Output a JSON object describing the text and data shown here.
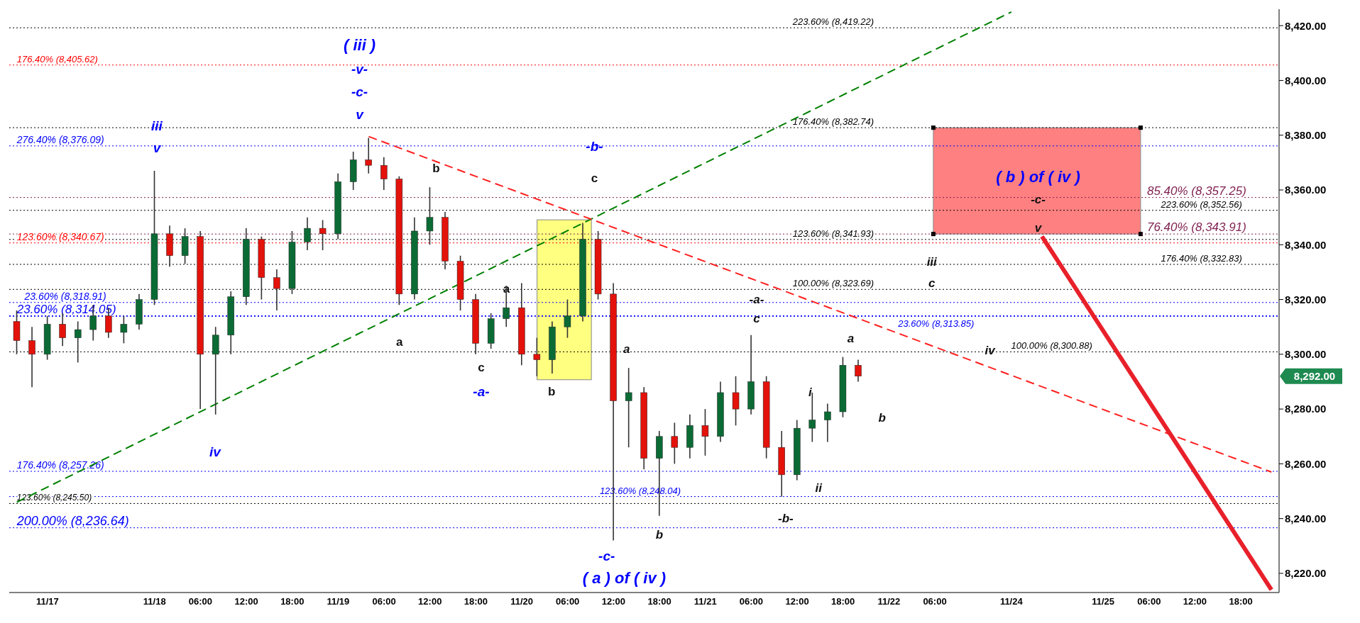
{
  "chart_data": {
    "type": "candlestick",
    "categories": [
      null,
      null,
      "11/17",
      null,
      null,
      null,
      null,
      null,
      null,
      "11/18",
      null,
      null,
      "06:00",
      null,
      null,
      "12:00",
      null,
      null,
      "18:00",
      null,
      null,
      "11/19",
      null,
      null,
      "06:00",
      null,
      null,
      "12:00",
      null,
      null,
      "18:00",
      null,
      null,
      "11/20",
      null,
      null,
      "06:00",
      null,
      null,
      "12:00",
      null,
      null,
      "18:00",
      null,
      null,
      "11/21",
      null,
      null,
      "06:00",
      null,
      null,
      "12:00",
      null,
      null,
      "18:00",
      null,
      null,
      "11/22",
      null,
      null,
      "06:00",
      null,
      null,
      null,
      null,
      "11/24",
      null,
      null,
      null,
      null,
      null,
      "11/25",
      null,
      null,
      "06:00",
      null,
      null,
      "12:00",
      null,
      null,
      "18:00",
      null,
      null
    ],
    "ohlc": [
      [
        8312,
        8316,
        8300,
        8305
      ],
      [
        8305,
        8310,
        8288,
        8300
      ],
      [
        8300,
        8314,
        8298,
        8311
      ],
      [
        8311,
        8315,
        8303,
        8306
      ],
      [
        8306,
        8312,
        8297,
        8309
      ],
      [
        8309,
        8318,
        8305,
        8314
      ],
      [
        8314,
        8317,
        8306,
        8308
      ],
      [
        8308,
        8314,
        8304,
        8311
      ],
      [
        8311,
        8322,
        8309,
        8320
      ],
      [
        8320,
        8367,
        8318,
        8344
      ],
      [
        8344,
        8347,
        8332,
        8336
      ],
      [
        8336,
        8346,
        8333,
        8343
      ],
      [
        8343,
        8345,
        8280,
        8300
      ],
      [
        8300,
        8310,
        8278,
        8307
      ],
      [
        8307,
        8323,
        8300,
        8321
      ],
      [
        8321,
        8346,
        8318,
        8342
      ],
      [
        8342,
        8343,
        8320,
        8328
      ],
      [
        8328,
        8331,
        8316,
        8324
      ],
      [
        8324,
        8345,
        8322,
        8341
      ],
      [
        8341,
        8350,
        8338,
        8346
      ],
      [
        8346,
        8349,
        8338,
        8344
      ],
      [
        8344,
        8366,
        8342,
        8363
      ],
      [
        8363,
        8374,
        8360,
        8371
      ],
      [
        8371,
        8379,
        8366,
        8369
      ],
      [
        8369,
        8372,
        8360,
        8364
      ],
      [
        8364,
        8365,
        8318,
        8322
      ],
      [
        8322,
        8350,
        8320,
        8345
      ],
      [
        8345,
        8361,
        8340,
        8350
      ],
      [
        8350,
        8352,
        8331,
        8334
      ],
      [
        8334,
        8336,
        8316,
        8320
      ],
      [
        8320,
        8322,
        8300,
        8304
      ],
      [
        8304,
        8315,
        8302,
        8313
      ],
      [
        8313,
        8325,
        8310,
        8317
      ],
      [
        8317,
        8326,
        8296,
        8300
      ],
      [
        8300,
        8306,
        8292,
        8298
      ],
      [
        8298,
        8312,
        8293,
        8310
      ],
      [
        8310,
        8320,
        8306,
        8314
      ],
      [
        8314,
        8348,
        8312,
        8342
      ],
      [
        8342,
        8345,
        8320,
        8322
      ],
      [
        8322,
        8326,
        8232,
        8283
      ],
      [
        8283,
        8295,
        8266,
        8286
      ],
      [
        8286,
        8288,
        8258,
        8262
      ],
      [
        8262,
        8272,
        8241,
        8270
      ],
      [
        8270,
        8275,
        8260,
        8266
      ],
      [
        8266,
        8278,
        8262,
        8274
      ],
      [
        8274,
        8280,
        8263,
        8270
      ],
      [
        8270,
        8290,
        8268,
        8286
      ],
      [
        8286,
        8292,
        8274,
        8280
      ],
      [
        8280,
        8307,
        8278,
        8290
      ],
      [
        8290,
        8292,
        8262,
        8266
      ],
      [
        8266,
        8272,
        8248,
        8256
      ],
      [
        8256,
        8276,
        8254,
        8273
      ],
      [
        8273,
        8286,
        8268,
        8276
      ],
      [
        8276,
        8282,
        8268,
        8279
      ],
      [
        8279,
        8299,
        8277,
        8296
      ],
      [
        8296,
        8298,
        8290,
        8292
      ],
      null,
      null,
      null,
      null,
      null,
      null,
      null,
      null,
      null,
      null,
      null,
      null,
      null,
      null,
      null,
      null,
      null,
      null,
      null,
      null,
      null,
      null,
      null,
      null,
      null,
      null,
      null
    ],
    "series": [
      {
        "type": "line",
        "color": "#008000",
        "line_style": "dashed",
        "values": [
          8246,
          null,
          null,
          null,
          null,
          null,
          null,
          null,
          null,
          null,
          null,
          null,
          null,
          null,
          null,
          null,
          null,
          null,
          null,
          null,
          null,
          null,
          null,
          null,
          null,
          null,
          null,
          null,
          null,
          null,
          null,
          null,
          null,
          null,
          null,
          null,
          null,
          null,
          null,
          null,
          null,
          null,
          null,
          null,
          null,
          null,
          null,
          null,
          null,
          null,
          null,
          null,
          null,
          null,
          null,
          null,
          null,
          null,
          null,
          null,
          null,
          null,
          null,
          null,
          null,
          8425,
          null,
          null,
          null,
          null,
          null,
          null,
          null,
          null,
          null,
          null,
          null,
          null,
          null,
          null,
          null,
          null,
          null
        ]
      },
      {
        "type": "line",
        "color": "#ff2020",
        "line_style": "dashed",
        "values": [
          null,
          null,
          null,
          null,
          null,
          null,
          null,
          null,
          null,
          null,
          null,
          null,
          null,
          null,
          null,
          null,
          null,
          null,
          null,
          null,
          null,
          null,
          null,
          8379.5,
          null,
          null,
          null,
          null,
          null,
          null,
          null,
          null,
          null,
          null,
          null,
          null,
          null,
          null,
          null,
          null,
          null,
          null,
          null,
          null,
          null,
          null,
          null,
          null,
          null,
          null,
          null,
          null,
          null,
          null,
          null,
          null,
          null,
          null,
          null,
          null,
          null,
          null,
          null,
          null,
          null,
          null,
          null,
          null,
          null,
          null,
          null,
          null,
          null,
          null,
          null,
          null,
          null,
          null,
          null,
          null,
          null,
          null,
          8257
        ]
      },
      {
        "type": "line",
        "color": "#e8202a",
        "line_style": "solid",
        "values": [
          null,
          null,
          null,
          null,
          null,
          null,
          null,
          null,
          null,
          null,
          null,
          null,
          null,
          null,
          null,
          null,
          null,
          null,
          null,
          null,
          null,
          null,
          null,
          null,
          null,
          null,
          null,
          null,
          null,
          null,
          null,
          null,
          null,
          null,
          null,
          null,
          null,
          null,
          null,
          null,
          null,
          null,
          null,
          null,
          null,
          null,
          null,
          null,
          null,
          null,
          null,
          null,
          null,
          null,
          null,
          null,
          null,
          null,
          null,
          null,
          null,
          null,
          null,
          null,
          null,
          null,
          null,
          8343,
          null,
          null,
          null,
          null,
          null,
          null,
          null,
          null,
          null,
          null,
          null,
          null,
          null,
          null,
          8214
        ]
      }
    ],
    "ylim": [
      8213,
      8426
    ],
    "yticks": [
      {
        "value": 8220,
        "label": "8,220.00"
      },
      {
        "value": 8240,
        "label": "8,240.00"
      },
      {
        "value": 8260,
        "label": "8,260.00"
      },
      {
        "value": 8280,
        "label": "8,280.00"
      },
      {
        "value": 8300,
        "label": "8,300.00"
      },
      {
        "value": 8320,
        "label": "8,320.00"
      },
      {
        "value": 8340,
        "label": "8,340.00"
      },
      {
        "value": 8360,
        "label": "8,360.00"
      },
      {
        "value": 8380,
        "label": "8,380.00"
      },
      {
        "value": 8400,
        "label": "8,400.00"
      },
      {
        "value": 8420,
        "label": "8,420.00"
      }
    ],
    "ref_lines": [
      {
        "axis": "y",
        "value": 8405.62,
        "label": "176.40% (8,405.62)",
        "color": "#ff0000",
        "line_style": "dotted"
      },
      {
        "axis": "y",
        "value": 8376.09,
        "label": "276.40% (8,376.09)",
        "color": "#0000ff",
        "line_style": "dotted"
      },
      {
        "axis": "y",
        "value": 8340.67,
        "label": "123.60% (8,340.67)",
        "color": "#ff0000",
        "line_style": "dotted"
      },
      {
        "axis": "y",
        "value": 8318.91,
        "label": "23.60% (8,318.91)",
        "color": "#0000ff",
        "line_style": "dotted"
      },
      {
        "axis": "y",
        "value": 8314.05,
        "label": "23.60% (8,314.05)",
        "color": "#0000ff",
        "line_style": "dotted"
      },
      {
        "axis": "y",
        "value": 8313.85,
        "label": "23.60% (8,313.85)",
        "color": "#0000ff",
        "line_style": "dotted"
      },
      {
        "axis": "y",
        "value": 8257.26,
        "label": "176.40% (8,257.26)",
        "color": "#0000ff",
        "line_style": "dotted"
      },
      {
        "axis": "y",
        "value": 8248.04,
        "label": "123.60% (8,248.04)",
        "color": "#0000ff",
        "line_style": "dotted"
      },
      {
        "axis": "y",
        "value": 8245.5,
        "label": "123.60% (8,245.50)",
        "color": "#000000",
        "line_style": "dotted"
      },
      {
        "axis": "y",
        "value": 8236.64,
        "label": "200.00% (8,236.64)",
        "color": "#0000ff",
        "line_style": "dotted"
      },
      {
        "axis": "y",
        "value": 8419.22,
        "label": "223.60% (8,419.22)",
        "color": "#000000",
        "line_style": "dotted"
      },
      {
        "axis": "y",
        "value": 8382.74,
        "label": "176.40% (8,382.74)",
        "color": "#000000",
        "line_style": "dotted"
      },
      {
        "axis": "y",
        "value": 8357.25,
        "label": "85.40% (8,357.25)",
        "color": "#7f1f4f",
        "line_style": "dotted"
      },
      {
        "axis": "y",
        "value": 8352.56,
        "label": "223.60% (8,352.56)",
        "color": "#000000",
        "line_style": "dotted"
      },
      {
        "axis": "y",
        "value": 8343.91,
        "label": "76.40% (8,343.91)",
        "color": "#7f1f4f",
        "line_style": "dotted"
      },
      {
        "axis": "y",
        "value": 8341.93,
        "label": "123.60% (8,341.93)",
        "color": "#000000",
        "line_style": "dotted"
      },
      {
        "axis": "y",
        "value": 8332.83,
        "label": "176.40% (8,332.83)",
        "color": "#000000",
        "line_style": "dotted"
      },
      {
        "axis": "y",
        "value": 8323.69,
        "label": "100.00% (8,323.69)",
        "color": "#000000",
        "line_style": "dotted"
      },
      {
        "axis": "y",
        "value": 8300.88,
        "label": "100.00% (8,300.88)",
        "color": "#000000",
        "line_style": "dotted"
      }
    ],
    "annotations": [
      "( iii )",
      "-v-",
      "-c-",
      "v",
      "iii",
      "v",
      "iv",
      "b",
      "a",
      "a",
      "c",
      "-a-",
      "-b-",
      "c",
      "b",
      "a",
      "-c-",
      "( a ) of ( iv )",
      "b",
      "-a-",
      "c",
      "i",
      "ii",
      "-b-",
      "a",
      "b",
      "iii",
      "c",
      "iv",
      "( b ) of ( iv )",
      "-c-",
      "v",
      "8,292.00"
    ]
  }
}
